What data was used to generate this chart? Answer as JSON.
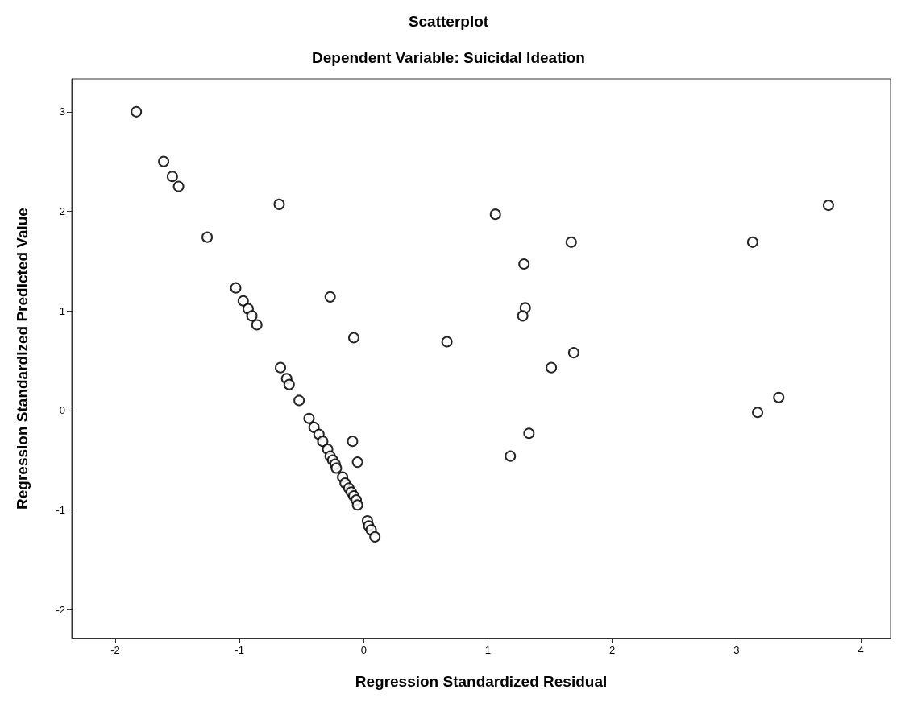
{
  "chart_data": {
    "type": "scatter",
    "title": "Scatterplot",
    "subtitle": "Dependent Variable: Suicidal Ideation",
    "xlabel": "Regression Standardized Residual",
    "ylabel": "Regression Standardized Predicted Value",
    "x": [
      -1.83,
      -1.61,
      -1.54,
      -1.49,
      -0.68,
      -1.26,
      1.06,
      3.74,
      1.67,
      3.13,
      1.29,
      1.3,
      1.28,
      -1.03,
      -0.97,
      -0.93,
      -0.9,
      -0.86,
      -0.27,
      -0.08,
      0.67,
      1.69,
      1.51,
      -0.67,
      -0.62,
      -0.6,
      -0.52,
      3.17,
      3.34,
      -0.09,
      -0.05,
      1.33,
      1.18,
      -0.44,
      -0.4,
      -0.36,
      -0.33,
      -0.29,
      -0.27,
      -0.25,
      -0.23,
      -0.22,
      -0.17,
      -0.15,
      -0.12,
      -0.1,
      -0.08,
      -0.06,
      -0.05,
      0.03,
      0.04,
      0.06,
      0.09
    ],
    "values": [
      3.0,
      2.5,
      2.35,
      2.25,
      2.07,
      1.74,
      1.97,
      2.06,
      1.69,
      1.69,
      1.47,
      1.03,
      0.95,
      1.23,
      1.1,
      1.02,
      0.95,
      0.86,
      1.14,
      0.73,
      0.69,
      0.58,
      0.43,
      0.43,
      0.32,
      0.26,
      0.1,
      -0.02,
      0.13,
      -0.31,
      -0.52,
      -0.23,
      -0.46,
      -0.08,
      -0.17,
      -0.24,
      -0.31,
      -0.39,
      -0.46,
      -0.5,
      -0.54,
      -0.58,
      -0.67,
      -0.73,
      -0.78,
      -0.82,
      -0.86,
      -0.9,
      -0.95,
      -1.11,
      -1.16,
      -1.2,
      -1.27
    ],
    "color": "#000000",
    "marker": "circle",
    "grid": false,
    "xlim": [
      -2.35,
      4.24
    ],
    "ylim": [
      -2.29,
      3.33
    ],
    "xticks": [
      -2,
      -1,
      0,
      1,
      2,
      3,
      4
    ],
    "yticks": [
      -2,
      -1,
      0,
      1,
      2,
      3
    ]
  }
}
